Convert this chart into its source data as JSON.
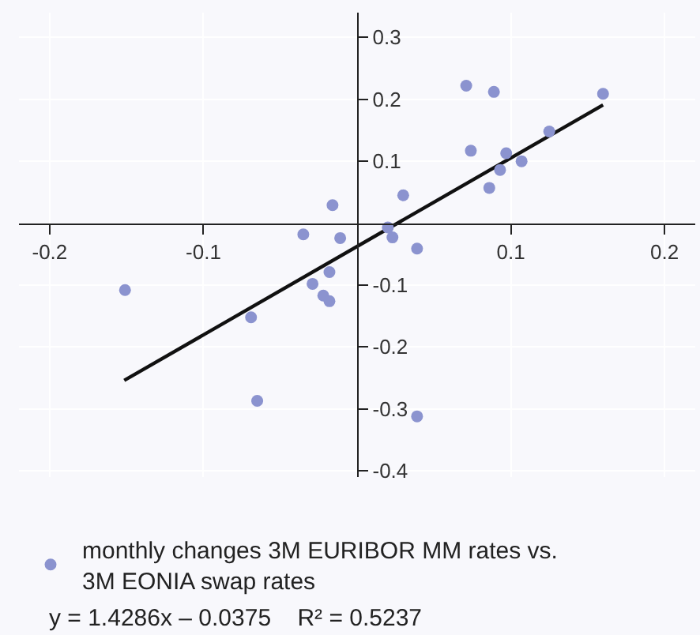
{
  "chart_data": {
    "type": "scatter",
    "x": [
      -0.151,
      -0.016,
      -0.035,
      -0.011,
      -0.018,
      -0.029,
      -0.022,
      -0.018,
      -0.069,
      -0.065,
      0.071,
      0.089,
      0.16,
      0.125,
      0.074,
      0.097,
      0.107,
      0.093,
      0.086,
      0.03,
      0.02,
      0.023,
      0.039,
      0.039
    ],
    "series": [
      {
        "name": "monthly changes 3M EURIBOR MM rates vs. 3M EONIA swap rates",
        "color": "#8b93cf",
        "marker": "circle",
        "values": [
          -0.108,
          0.029,
          -0.018,
          -0.024,
          -0.079,
          -0.098,
          -0.117,
          -0.126,
          -0.152,
          -0.287,
          0.222,
          0.212,
          0.209,
          0.148,
          0.117,
          0.113,
          0.1,
          0.086,
          0.057,
          0.045,
          -0.007,
          -0.023,
          -0.041,
          -0.312
        ]
      },
      {
        "type": "line",
        "color": "#111111",
        "x": [
          -0.1515,
          0.16
        ],
        "values": [
          -0.254,
          0.191
        ]
      }
    ],
    "xlim": [
      -0.22,
      0.22
    ],
    "ylim": [
      -0.41,
      0.34
    ],
    "xticks": [
      {
        "value": -0.2,
        "label": "-0.2"
      },
      {
        "value": -0.1,
        "label": "-0.1"
      },
      {
        "value": 0.1,
        "label": "0.1"
      },
      {
        "value": 0.2,
        "label": "0.2"
      }
    ],
    "yticks": [
      {
        "value": -0.4,
        "label": "-0.4"
      },
      {
        "value": -0.3,
        "label": "-0.3"
      },
      {
        "value": -0.2,
        "label": "-0.2"
      },
      {
        "value": -0.1,
        "label": "-0.1"
      },
      {
        "value": 0.1,
        "label": "0.1"
      },
      {
        "value": 0.2,
        "label": "0.2"
      },
      {
        "value": 0.3,
        "label": "0.3"
      }
    ],
    "grid": true,
    "legend": "bottom",
    "annotations": [
      "y = 1.4286x – 0.0375    R² = 0.5237"
    ]
  }
}
